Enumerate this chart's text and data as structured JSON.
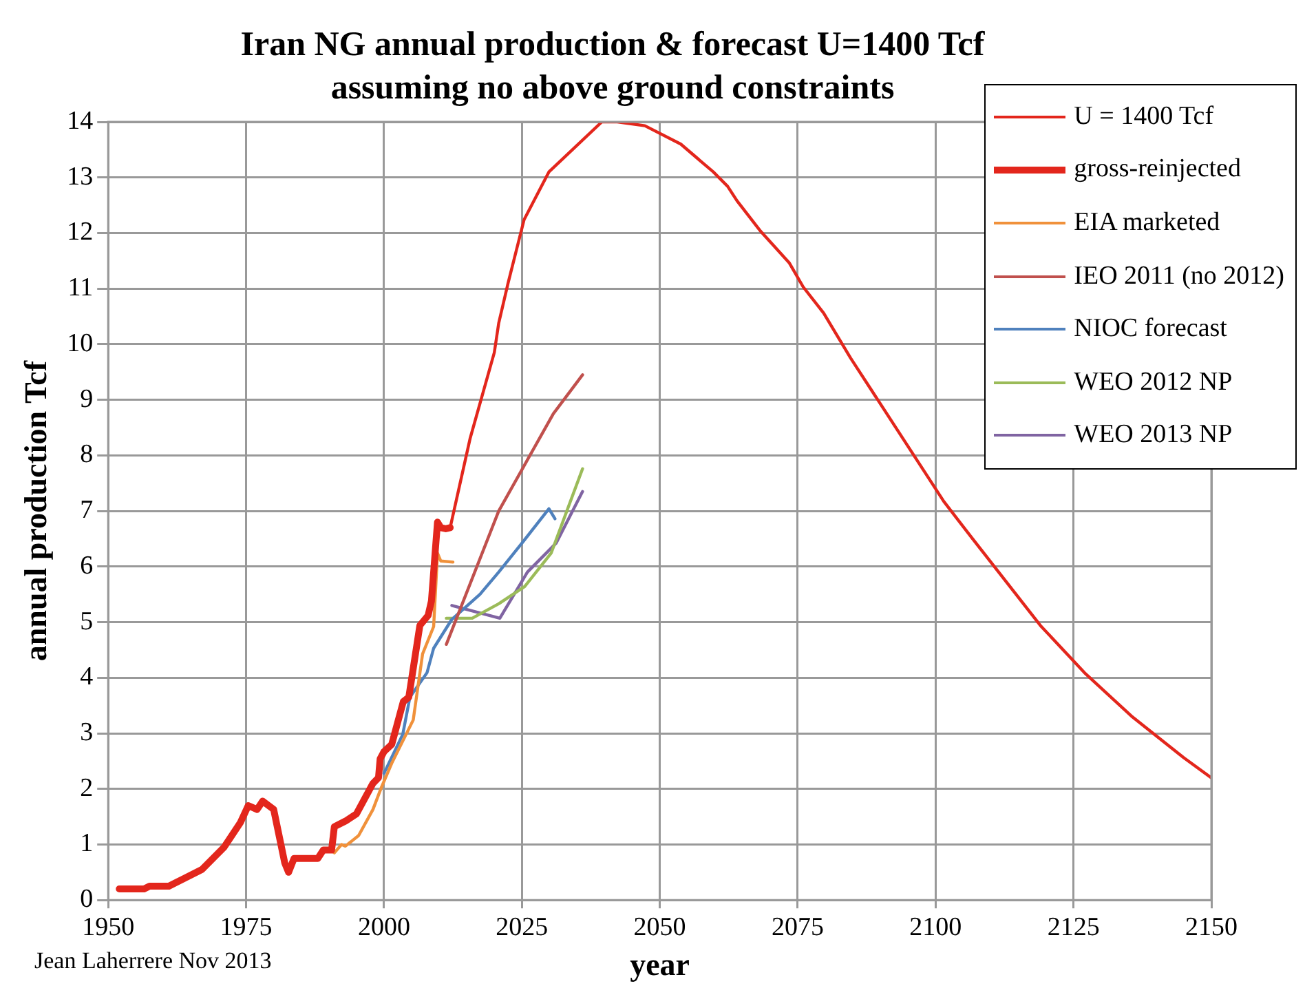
{
  "chart_data": {
    "type": "line",
    "title": [
      "Iran NG annual production & forecast U=1400 Tcf",
      "assuming no above ground constraints"
    ],
    "xlabel": "year",
    "ylabel": "annual production Tcf",
    "xlim": [
      1950,
      2150
    ],
    "xticks": [
      1950,
      1975,
      2000,
      2025,
      2050,
      2075,
      2100,
      2125,
      2150
    ],
    "ylim": [
      0,
      14
    ],
    "yticks": [
      0,
      1,
      2,
      3,
      4,
      5,
      6,
      7,
      8,
      9,
      10,
      11,
      12,
      13,
      14
    ],
    "grid": true,
    "legend": "top right",
    "marker": "none",
    "line_style": "solid",
    "annotations": [
      "Jean Laherrere Nov 2013"
    ],
    "series": [
      {
        "name": "U = 1400 Tcf",
        "color": "#e3261c",
        "x": [
          2012,
          2015.6,
          2020,
          2020.8,
          2022.5,
          2025.4,
          2029.9,
          2039.5,
          2042.3,
          2047.3,
          2053.8,
          2059.7,
          2062.3,
          2064,
          2068.3,
          2073.5,
          2076,
          2079.7,
          2084.6,
          2101.5,
          2106.7,
          2119,
          2127,
          2135.5,
          2145,
          2150
        ],
        "values": [
          6.7,
          8.3,
          9.85,
          10.38,
          11.1,
          12.24,
          13.1,
          14,
          14,
          13.93,
          13.6,
          13.1,
          12.84,
          12.58,
          12.03,
          11.46,
          11.03,
          10.56,
          9.75,
          7.17,
          6.5,
          4.94,
          4.09,
          3.31,
          2.56,
          2.2
        ]
      },
      {
        "name": "gross-reinjected",
        "color": "#e3261c",
        "x": [
          1952,
          1956.5,
          1957.5,
          1961,
          1967,
          1971,
          1974,
          1975.4,
          1977,
          1978,
          1980,
          1981,
          1982,
          1982.7,
          1983.7,
          1988,
          1989,
          1990.5,
          1991,
          1993,
          1995,
          1998,
          1999,
          1999.3,
          2000,
          2001.4,
          2003.5,
          2004.5,
          2006.5,
          2008,
          2008.6,
          2009.7,
          2010.3,
          2011.2,
          2012
        ],
        "values": [
          0.2,
          0.2,
          0.25,
          0.25,
          0.55,
          0.95,
          1.4,
          1.7,
          1.63,
          1.78,
          1.63,
          1.15,
          0.67,
          0.5,
          0.75,
          0.75,
          0.9,
          0.9,
          1.32,
          1.42,
          1.55,
          2.1,
          2.2,
          2.54,
          2.67,
          2.8,
          3.57,
          3.65,
          4.94,
          5.12,
          5.38,
          6.8,
          6.7,
          6.68,
          6.7
        ]
      },
      {
        "name": "EIA marketed",
        "color": "#f0913b",
        "x": [
          1991,
          1992.3,
          1993,
          1995.4,
          1998,
          1999.5,
          2001.4,
          2005.3,
          2007,
          2009,
          2009.7,
          2010.3,
          2012.5
        ],
        "values": [
          0.85,
          1.0,
          0.97,
          1.16,
          1.63,
          2.02,
          2.46,
          3.24,
          4.43,
          4.92,
          6.24,
          6.1,
          6.08
        ]
      },
      {
        "name": "IEO 2011 (no 2012)",
        "color": "#c0504d",
        "x": [
          2011.3,
          2020.8,
          2030.7,
          2036
        ],
        "values": [
          4.6,
          7.0,
          8.75,
          9.45
        ]
      },
      {
        "name": "NIOC forecast",
        "color": "#4f81bd",
        "x": [
          2000,
          2003.4,
          2004.7,
          2007.8,
          2009,
          2012.3,
          2017.4,
          2020.8,
          2025,
          2029.9,
          2031
        ],
        "values": [
          2.28,
          2.98,
          3.65,
          4.09,
          4.53,
          5.05,
          5.5,
          5.9,
          6.42,
          7.04,
          6.86
        ]
      },
      {
        "name": "WEO 2012 NP",
        "color": "#9bbb59",
        "x": [
          2011.3,
          2016,
          2020.8,
          2025.5,
          2030.3,
          2036
        ],
        "values": [
          5.07,
          5.07,
          5.33,
          5.64,
          6.24,
          7.76
        ]
      },
      {
        "name": "WEO 2013 NP",
        "color": "#8064a2",
        "x": [
          2012.3,
          2021,
          2026,
          2031.2,
          2036
        ],
        "values": [
          5.3,
          5.07,
          5.9,
          6.42,
          7.35
        ]
      }
    ]
  }
}
